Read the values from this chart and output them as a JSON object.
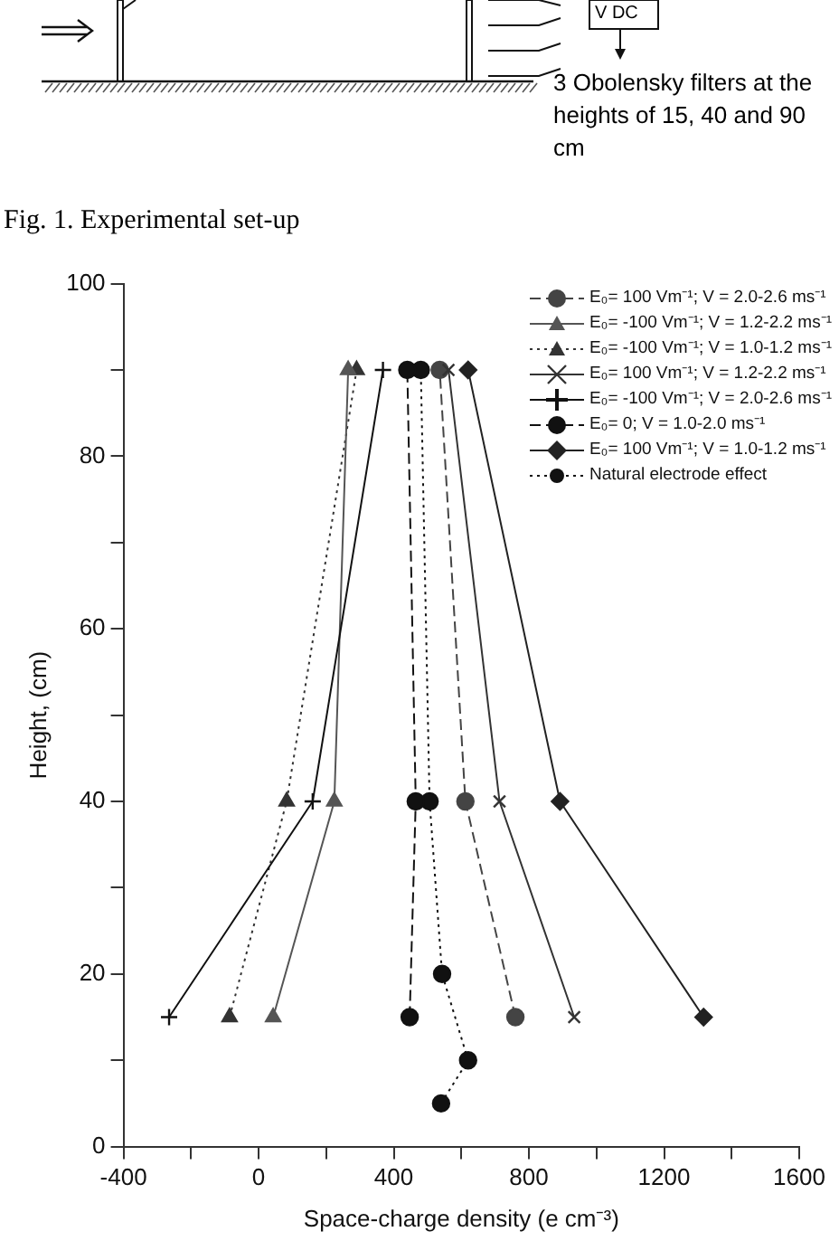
{
  "chart_data": {
    "type": "line",
    "xlabel": "Space-charge density (e cm⁻³)",
    "ylabel": "Height, (cm)",
    "xlim": [
      -400,
      1600
    ],
    "ylim": [
      0,
      100
    ],
    "xticks": [
      -400,
      {
        "value": -200,
        "label": null
      },
      0,
      {
        "value": 200,
        "label": null
      },
      400,
      {
        "value": 600,
        "label": null
      },
      800,
      {
        "value": 1000,
        "label": null
      },
      1200,
      {
        "value": 1400,
        "label": null
      },
      1600
    ],
    "yticks": [
      0,
      {
        "value": 10,
        "label": null
      },
      20,
      {
        "value": 30,
        "label": null
      },
      40,
      {
        "value": 50,
        "label": null
      },
      60,
      {
        "value": 70,
        "label": null
      },
      80,
      {
        "value": 90,
        "label": null
      },
      100
    ],
    "grid": false,
    "legend": "top right",
    "annotations": [
      "V DC",
      "3 Obolensky filters at the heights of 15, 40 and 90 cm",
      "Fig. 1. Experimental set-up"
    ],
    "series": [
      {
        "name": "E₀= 100 Vm⁻¹; V = 2.0-2.6 ms⁻¹",
        "color": "#444444",
        "marker": "circle",
        "line_style": "dashed",
        "x": [
          760,
          612,
          536
        ],
        "values": [
          15,
          40,
          90
        ]
      },
      {
        "name": "E₀= -100 Vm⁻¹; V = 1.2-2.2 ms⁻¹",
        "color": "#555555",
        "marker": "triangle",
        "line_style": "solid",
        "x": [
          43,
          224,
          265
        ],
        "values": [
          15,
          40,
          90
        ]
      },
      {
        "name": "E₀= -100 Vm⁻¹; V = 1.0-1.2 ms⁻¹",
        "color": "#333333",
        "marker": "triangle",
        "line_style": "dotted",
        "x": [
          -86,
          83,
          290
        ],
        "values": [
          15,
          40,
          90
        ]
      },
      {
        "name": "E₀= 100 Vm⁻¹; V = 1.2-2.2 ms⁻¹",
        "color": "#333333",
        "marker": "cross",
        "line_style": "solid",
        "x": [
          934,
          713,
          562
        ],
        "values": [
          15,
          40,
          90
        ]
      },
      {
        "name": "E₀= -100 Vm⁻¹; V = 2.0-2.6 ms⁻¹",
        "color": "#111111",
        "marker": "plus",
        "line_style": "solid",
        "x": [
          -265,
          160,
          368
        ],
        "values": [
          15,
          40,
          90
        ]
      },
      {
        "name": "E₀= 0; V = 1.0-2.0 ms⁻¹",
        "color": "#111111",
        "marker": "circle",
        "line_style": "dashed",
        "x": [
          447,
          465,
          440
        ],
        "values": [
          15,
          40,
          90
        ]
      },
      {
        "name": "E₀= 100 Vm⁻¹; V = 1.0-1.2 ms⁻¹",
        "color": "#222222",
        "marker": "diamond",
        "line_style": "solid",
        "x": [
          1317,
          892,
          620
        ],
        "values": [
          15,
          40,
          90
        ]
      },
      {
        "name": "Natural electrode effect",
        "color": "#111111",
        "marker": "circle",
        "line_style": "dotted",
        "x": [
          540,
          620,
          543,
          506,
          480
        ],
        "values": [
          5,
          10,
          20,
          40,
          90
        ]
      }
    ]
  }
}
